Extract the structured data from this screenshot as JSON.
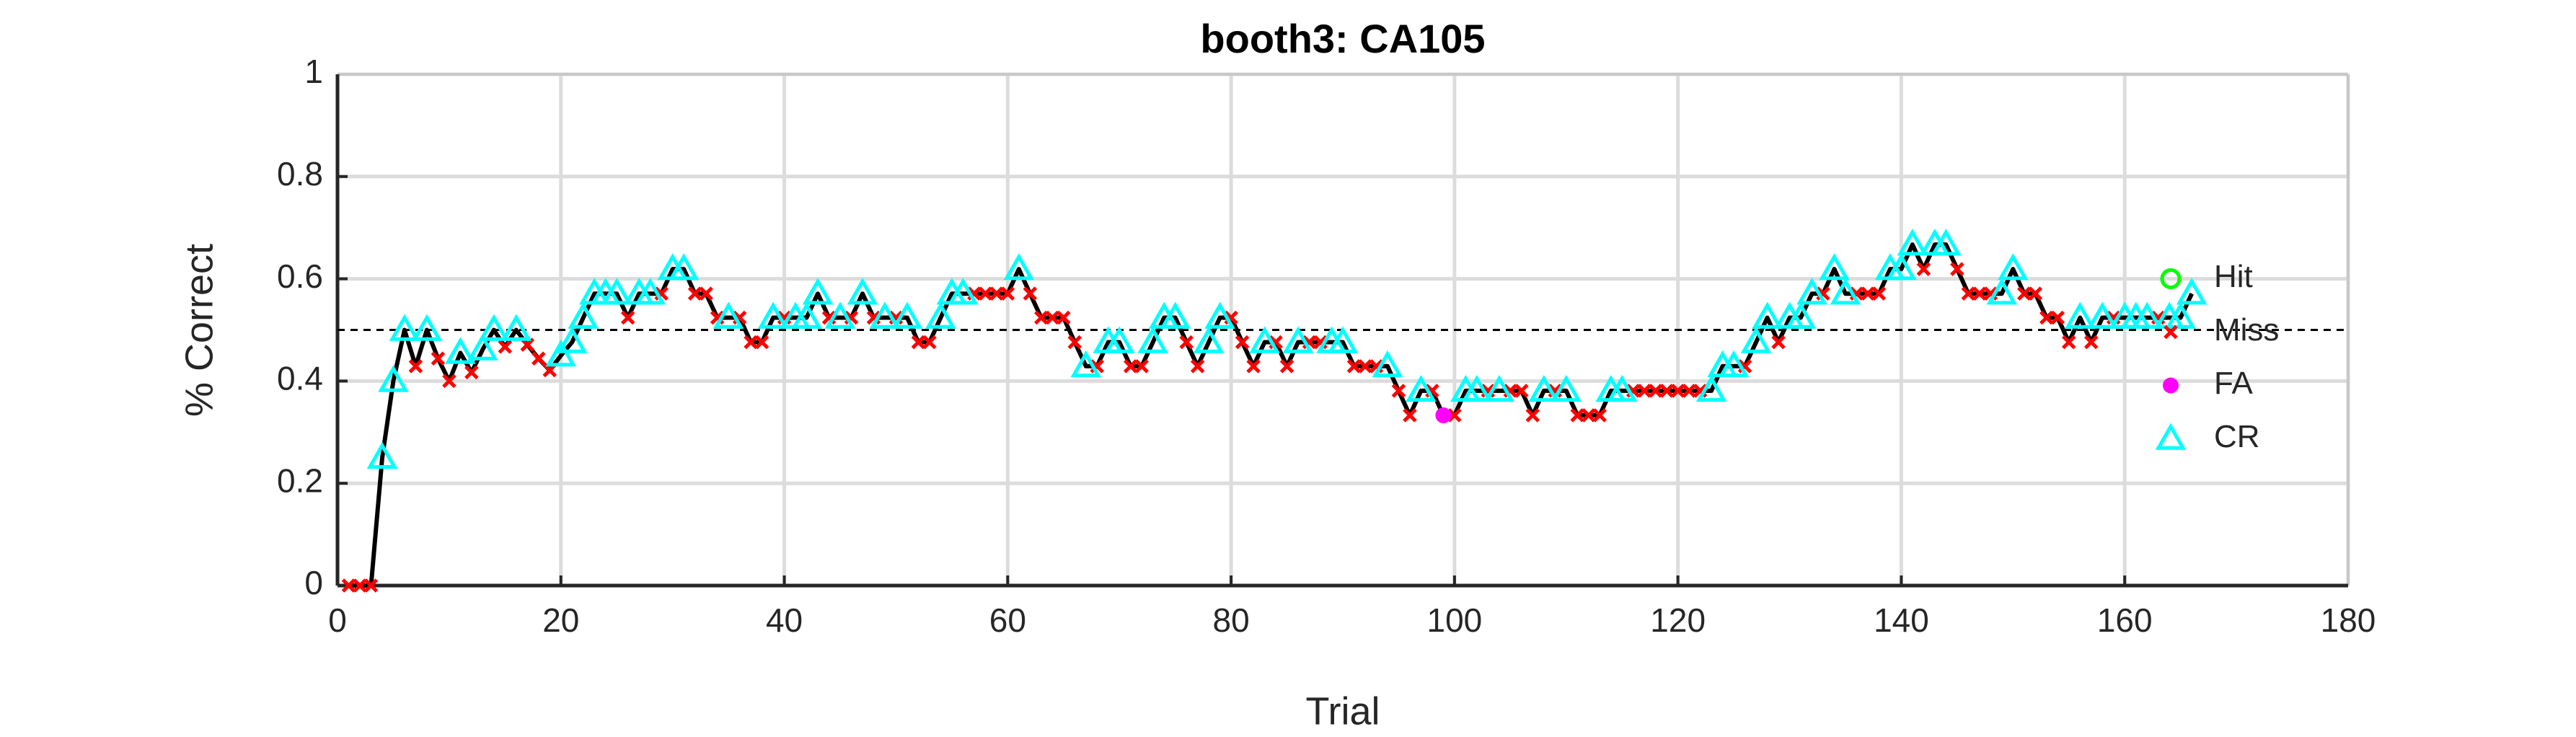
{
  "chart_data": {
    "type": "line",
    "title": "booth3: CA105",
    "x_label": "Trial",
    "y_label": "% Correct",
    "xlim": [
      0,
      180
    ],
    "ylim": [
      0,
      1
    ],
    "xticks": [
      0,
      20,
      40,
      60,
      80,
      100,
      120,
      140,
      160,
      180
    ],
    "yticks": [
      0,
      0.2,
      0.4,
      0.6,
      0.8,
      1
    ],
    "grid": true,
    "legend": "east",
    "line_color": "#000000",
    "reference_line": 0.5,
    "x": [
      1,
      2,
      3,
      4,
      5,
      6,
      7,
      8,
      9,
      10,
      11,
      12,
      13,
      14,
      15,
      16,
      17,
      18,
      19,
      20,
      21,
      22,
      23,
      24,
      25,
      26,
      27,
      28,
      29,
      30,
      31,
      32,
      33,
      34,
      35,
      36,
      37,
      38,
      39,
      40,
      41,
      42,
      43,
      44,
      45,
      46,
      47,
      48,
      49,
      50,
      51,
      52,
      53,
      54,
      55,
      56,
      57,
      58,
      59,
      60,
      61,
      62,
      63,
      64,
      65,
      66,
      67,
      68,
      69,
      70,
      71,
      72,
      73,
      74,
      75,
      76,
      77,
      78,
      79,
      80,
      81,
      82,
      83,
      84,
      85,
      86,
      87,
      88,
      89,
      90,
      91,
      92,
      93,
      94,
      95,
      96,
      97,
      98,
      99,
      100,
      101,
      102,
      103,
      104,
      105,
      106,
      107,
      108,
      109,
      110,
      111,
      112,
      113,
      114,
      115,
      116,
      117,
      118,
      119,
      120,
      121,
      122,
      123,
      124,
      125,
      126,
      127,
      128,
      129,
      130,
      131,
      132,
      133,
      134,
      135,
      136,
      137,
      138,
      139,
      140,
      141,
      142,
      143,
      144,
      145,
      146,
      147,
      148,
      149,
      150,
      151,
      152,
      153,
      154,
      155,
      156,
      157,
      158,
      159,
      160,
      161,
      162,
      163,
      164,
      165,
      166
    ],
    "values": [
      0,
      0,
      0,
      0.25,
      0.4,
      0.5,
      0.429,
      0.5,
      0.444,
      0.4,
      0.455,
      0.417,
      0.462,
      0.5,
      0.467,
      0.5,
      0.471,
      0.444,
      0.421,
      0.45,
      0.476,
      0.524,
      0.571,
      0.571,
      0.571,
      0.524,
      0.571,
      0.571,
      0.571,
      0.619,
      0.619,
      0.571,
      0.571,
      0.524,
      0.524,
      0.524,
      0.476,
      0.476,
      0.524,
      0.524,
      0.524,
      0.524,
      0.571,
      0.524,
      0.524,
      0.524,
      0.571,
      0.524,
      0.524,
      0.524,
      0.524,
      0.476,
      0.476,
      0.524,
      0.571,
      0.571,
      0.571,
      0.571,
      0.571,
      0.571,
      0.619,
      0.571,
      0.524,
      0.524,
      0.524,
      0.476,
      0.429,
      0.429,
      0.476,
      0.476,
      0.429,
      0.429,
      0.476,
      0.524,
      0.524,
      0.476,
      0.429,
      0.476,
      0.524,
      0.524,
      0.476,
      0.429,
      0.476,
      0.476,
      0.429,
      0.476,
      0.476,
      0.476,
      0.476,
      0.476,
      0.429,
      0.429,
      0.429,
      0.429,
      0.381,
      0.333,
      0.381,
      0.381,
      0.333,
      0.333,
      0.381,
      0.381,
      0.381,
      0.381,
      0.381,
      0.381,
      0.333,
      0.381,
      0.381,
      0.381,
      0.333,
      0.333,
      0.333,
      0.381,
      0.381,
      0.381,
      0.381,
      0.381,
      0.381,
      0.381,
      0.381,
      0.381,
      0.381,
      0.429,
      0.429,
      0.429,
      0.476,
      0.524,
      0.476,
      0.524,
      0.524,
      0.571,
      0.571,
      0.619,
      0.571,
      0.571,
      0.571,
      0.571,
      0.619,
      0.619,
      0.667,
      0.619,
      0.667,
      0.667,
      0.619,
      0.571,
      0.571,
      0.571,
      0.571,
      0.619,
      0.571,
      0.571,
      0.524,
      0.524,
      0.476,
      0.524,
      0.476,
      0.524,
      0.524,
      0.524,
      0.524,
      0.524,
      0.524,
      0.524,
      0.524,
      0.571
    ],
    "series": [
      {
        "name": "Hit",
        "color": "#00ff00",
        "marker": "circle-open",
        "x": [],
        "values": []
      },
      {
        "name": "Miss",
        "color": "#ff0000",
        "marker": "cross",
        "x": [
          1,
          2,
          3,
          7,
          9,
          10,
          12,
          15,
          17,
          18,
          19,
          26,
          29,
          32,
          33,
          34,
          36,
          37,
          38,
          40,
          44,
          46,
          48,
          50,
          52,
          53,
          57,
          58,
          59,
          60,
          62,
          63,
          64,
          65,
          66,
          68,
          71,
          72,
          76,
          77,
          80,
          81,
          82,
          84,
          85,
          87,
          88,
          91,
          92,
          93,
          95,
          96,
          98,
          100,
          103,
          105,
          106,
          107,
          109,
          111,
          112,
          113,
          116,
          117,
          118,
          119,
          120,
          121,
          122,
          126,
          129,
          133,
          136,
          137,
          138,
          142,
          145,
          146,
          147,
          148,
          151,
          152,
          153,
          154,
          155,
          157,
          159,
          163
        ],
        "values": [
          0,
          0,
          0,
          0.429,
          0.444,
          0.4,
          0.417,
          0.467,
          0.471,
          0.444,
          0.421,
          0.524,
          0.571,
          0.571,
          0.571,
          0.524,
          0.524,
          0.476,
          0.476,
          0.524,
          0.524,
          0.524,
          0.524,
          0.524,
          0.476,
          0.476,
          0.571,
          0.571,
          0.571,
          0.571,
          0.571,
          0.524,
          0.524,
          0.524,
          0.476,
          0.429,
          0.429,
          0.429,
          0.476,
          0.429,
          0.524,
          0.476,
          0.429,
          0.476,
          0.429,
          0.476,
          0.476,
          0.429,
          0.429,
          0.429,
          0.381,
          0.333,
          0.381,
          0.333,
          0.381,
          0.381,
          0.381,
          0.333,
          0.381,
          0.333,
          0.333,
          0.333,
          0.381,
          0.381,
          0.381,
          0.381,
          0.381,
          0.381,
          0.381,
          0.429,
          0.476,
          0.571,
          0.571,
          0.571,
          0.571,
          0.619,
          0.619,
          0.571,
          0.571,
          0.571,
          0.571,
          0.571,
          0.524,
          0.524,
          0.476,
          0.476,
          0.524,
          0.524
        ]
      },
      {
        "name": "FA",
        "color": "#ff00ff",
        "marker": "dot",
        "x": [
          99
        ],
        "values": [
          0.333
        ]
      },
      {
        "name": "CR",
        "color": "#00ffff",
        "marker": "triangle-open",
        "x": [
          4,
          5,
          6,
          8,
          11,
          13,
          14,
          16,
          20,
          21,
          22,
          23,
          24,
          25,
          27,
          28,
          30,
          31,
          35,
          39,
          41,
          42,
          43,
          45,
          47,
          49,
          51,
          54,
          55,
          56,
          61,
          67,
          69,
          70,
          73,
          74,
          75,
          78,
          79,
          83,
          86,
          89,
          90,
          94,
          97,
          101,
          102,
          104,
          108,
          110,
          114,
          115,
          123,
          124,
          125,
          127,
          128,
          130,
          131,
          132,
          134,
          135,
          139,
          140,
          141,
          143,
          144,
          149,
          150,
          156,
          158,
          160,
          161,
          162,
          164,
          165,
          166
        ],
        "values": [
          0.25,
          0.4,
          0.5,
          0.5,
          0.455,
          0.462,
          0.5,
          0.5,
          0.45,
          0.476,
          0.524,
          0.571,
          0.571,
          0.571,
          0.571,
          0.571,
          0.619,
          0.619,
          0.524,
          0.524,
          0.524,
          0.524,
          0.571,
          0.524,
          0.571,
          0.524,
          0.524,
          0.524,
          0.571,
          0.571,
          0.619,
          0.429,
          0.476,
          0.476,
          0.476,
          0.524,
          0.524,
          0.476,
          0.524,
          0.476,
          0.476,
          0.476,
          0.476,
          0.429,
          0.381,
          0.381,
          0.381,
          0.381,
          0.381,
          0.381,
          0.381,
          0.381,
          0.381,
          0.429,
          0.429,
          0.476,
          0.524,
          0.524,
          0.524,
          0.571,
          0.619,
          0.571,
          0.619,
          0.619,
          0.667,
          0.667,
          0.667,
          0.571,
          0.619,
          0.524,
          0.524,
          0.524,
          0.524,
          0.524,
          0.524,
          0.524,
          0.571
        ]
      }
    ]
  }
}
